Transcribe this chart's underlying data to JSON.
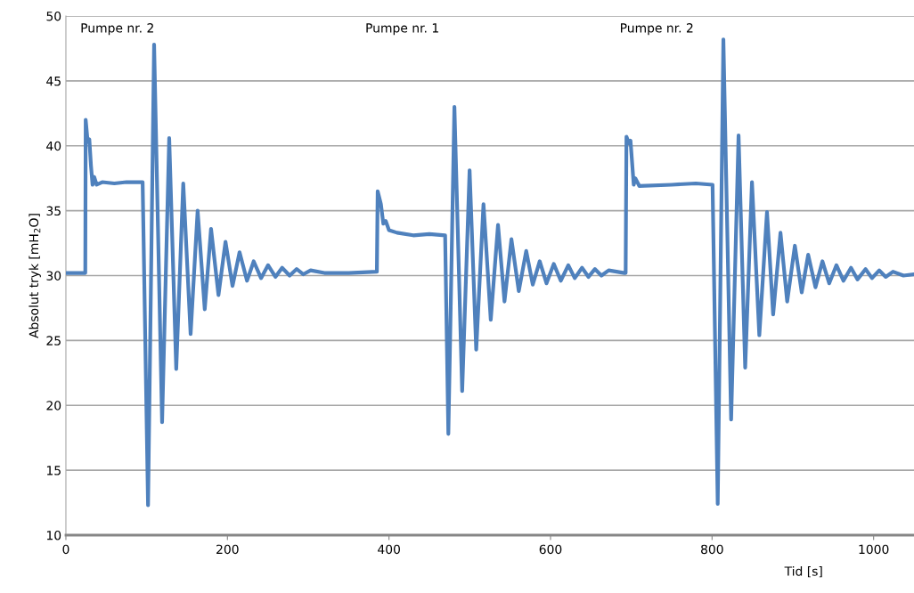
{
  "chart_data": {
    "type": "line",
    "xlabel": "Tid [s]",
    "ylabel": "Absolut tryk [mH$_{2}$O]",
    "xlim": [
      0,
      1050
    ],
    "xticks": [
      0,
      200,
      400,
      600,
      800,
      1000
    ],
    "ylim": [
      10,
      50
    ],
    "yticks": [
      10,
      15,
      20,
      25,
      30,
      35,
      40,
      45,
      50
    ],
    "grid": "y",
    "legend": false,
    "marker": "none",
    "line_style": "solid",
    "annotations": [
      "Pumpe nr. 2",
      "Pumpe nr. 1",
      "Pumpe nr. 2"
    ],
    "series": [
      {
        "color": "#4f81bd",
        "x": [
          0,
          24,
          24.5,
          27,
          29,
          31,
          33,
          35,
          38,
          45,
          60,
          75,
          90,
          95,
          101.7,
          109.2,
          119.1,
          127.9,
          136.6,
          145.3,
          154.4,
          163.1,
          171.9,
          179.7,
          188.9,
          197.6,
          206.3,
          215.0,
          224.2,
          232.5,
          241.6,
          250.3,
          259.4,
          267.7,
          277,
          285.6,
          294,
          303,
          320,
          350,
          385,
          386,
          390,
          393,
          396,
          400,
          410,
          430,
          450,
          469.5,
          473.5,
          481,
          490.6,
          499.8,
          508,
          517,
          526,
          535,
          543,
          551.6,
          560.7,
          569.9,
          578,
          586.6,
          595,
          604,
          612.7,
          622,
          630,
          639,
          647,
          655,
          663,
          672,
          691.5,
          693,
          694,
          697,
          699,
          703,
          705,
          710,
          750,
          780,
          800.6,
          807,
          814,
          823.6,
          832.8,
          841,
          849.4,
          858.5,
          868,
          875.6,
          884.7,
          893,
          902.5,
          911,
          919,
          928,
          936.6,
          945,
          954,
          962.7,
          972,
          980,
          990,
          998,
          1007,
          1015,
          1024,
          1037,
          1050
        ],
        "values": [
          30.2,
          30.2,
          42,
          40.3,
          40.5,
          38.5,
          37.0,
          37.6,
          37.0,
          37.2,
          37.1,
          37.2,
          37.2,
          37.2,
          12.3,
          47.8,
          18.7,
          40.6,
          22.8,
          37.1,
          25.5,
          35.0,
          27.4,
          33.6,
          28.5,
          32.6,
          29.2,
          31.8,
          29.6,
          31.1,
          29.8,
          30.8,
          29.9,
          30.6,
          30.0,
          30.5,
          30.1,
          30.4,
          30.2,
          30.2,
          30.3,
          36.5,
          35.5,
          34.0,
          34.2,
          33.5,
          33.3,
          33.1,
          33.2,
          33.1,
          17.8,
          43.0,
          21.1,
          38.1,
          24.3,
          35.5,
          26.6,
          33.9,
          28.0,
          32.8,
          28.8,
          31.9,
          29.3,
          31.1,
          29.4,
          30.9,
          29.6,
          30.8,
          29.8,
          30.6,
          29.9,
          30.5,
          30.0,
          30.4,
          30.2,
          30.2,
          40.7,
          40.2,
          40.4,
          37.0,
          37.5,
          36.9,
          37.0,
          37.1,
          37.0,
          12.4,
          48.2,
          18.9,
          40.8,
          22.9,
          37.2,
          25.4,
          34.9,
          27.0,
          33.3,
          28.0,
          32.3,
          28.7,
          31.6,
          29.1,
          31.1,
          29.4,
          30.8,
          29.6,
          30.6,
          29.7,
          30.5,
          29.8,
          30.4,
          29.9,
          30.3,
          30.0,
          30.1
        ]
      }
    ]
  }
}
